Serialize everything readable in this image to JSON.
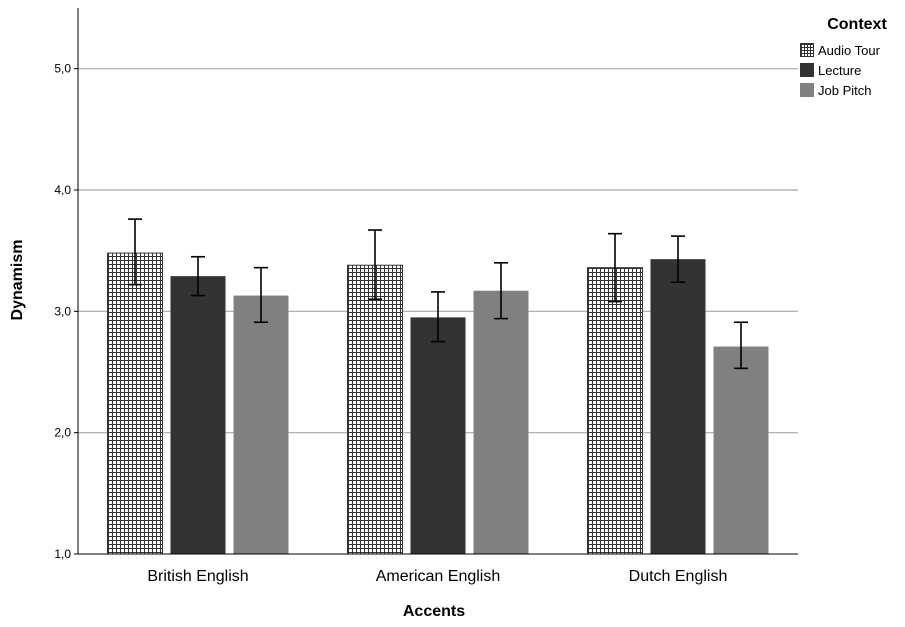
{
  "chart_data": {
    "type": "bar",
    "xlabel": "Accents",
    "ylabel": "Dynamism",
    "ylim": [
      1.0,
      5.5
    ],
    "yticks": [
      "1,0",
      "2,0",
      "3,0",
      "4,0",
      "5,0"
    ],
    "ytick_values": [
      1.0,
      2.0,
      3.0,
      4.0,
      5.0
    ],
    "grid": true,
    "categories": [
      "British English",
      "American English",
      "Dutch English"
    ],
    "legend": {
      "title": "Context",
      "placement": "top-right"
    },
    "series": [
      {
        "name": "Audio Tour",
        "pattern": "checkered",
        "color": "#333333",
        "values": [
          3.48,
          3.38,
          3.36
        ],
        "error_low": [
          3.22,
          3.1,
          3.08
        ],
        "error_high": [
          3.76,
          3.67,
          3.64
        ]
      },
      {
        "name": "Lecture",
        "color": "#333333",
        "values": [
          3.29,
          2.95,
          3.43
        ],
        "error_low": [
          3.13,
          2.75,
          3.24
        ],
        "error_high": [
          3.45,
          3.16,
          3.62
        ]
      },
      {
        "name": "Job Pitch",
        "color": "#808080",
        "values": [
          3.13,
          3.17,
          2.71
        ],
        "error_low": [
          2.91,
          2.94,
          2.53
        ],
        "error_high": [
          3.36,
          3.4,
          2.91
        ]
      }
    ]
  }
}
